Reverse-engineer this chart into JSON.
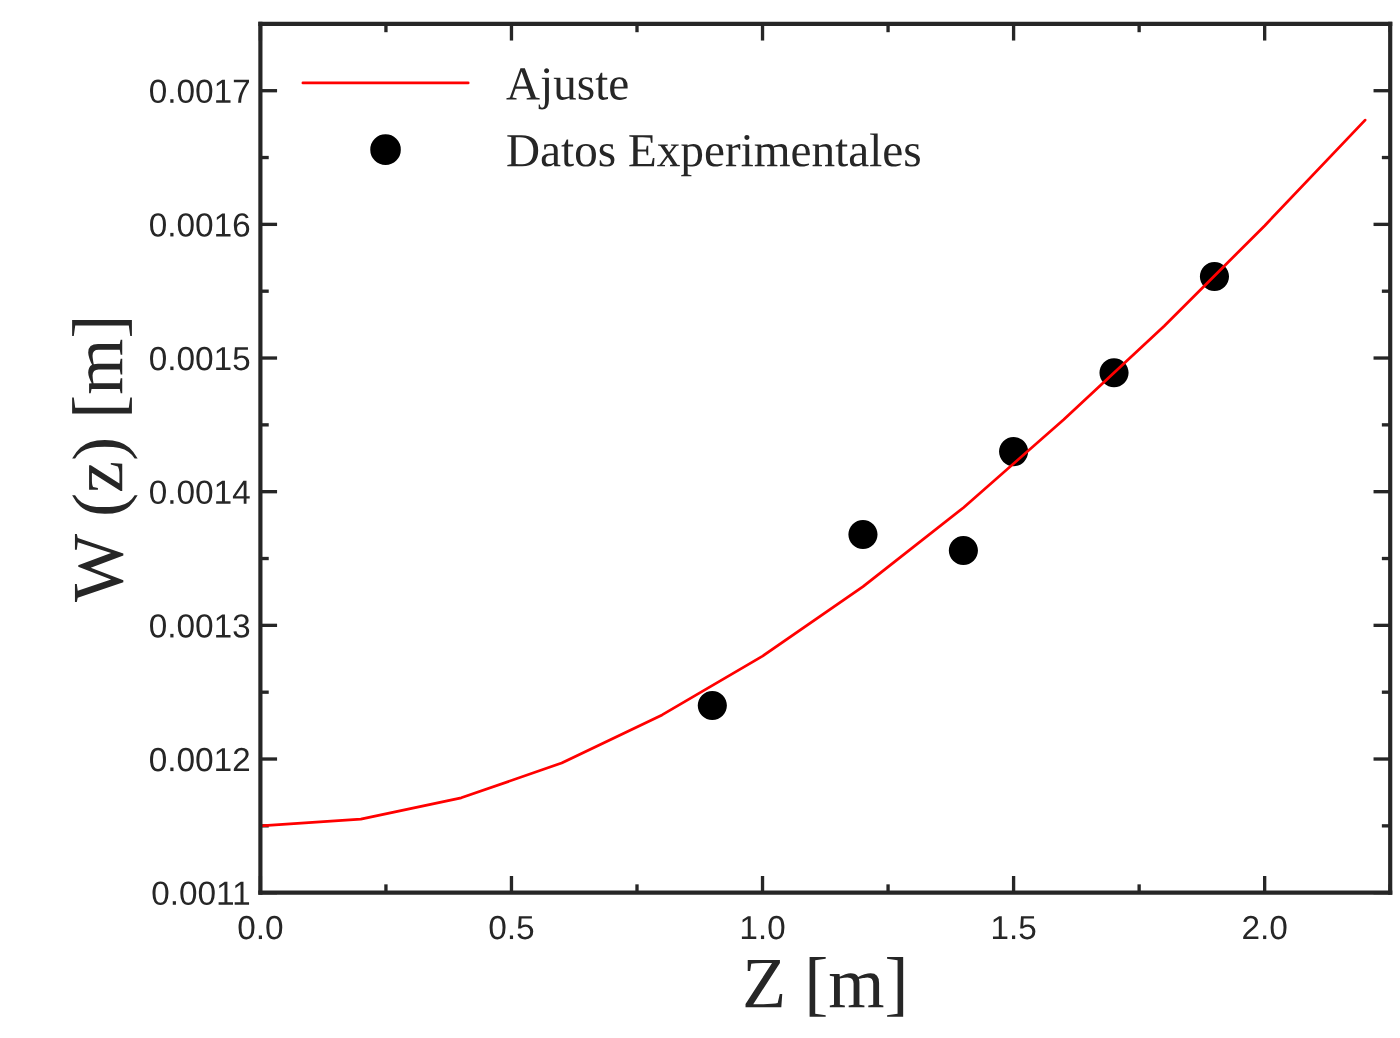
{
  "chart_data": {
    "type": "scatter",
    "xlabel": "Z [m]",
    "ylabel": "W (z) [m]",
    "xlim": [
      0,
      2.25
    ],
    "ylim": [
      0.0011,
      0.00175
    ],
    "xticks": [
      {
        "value": 0,
        "label": "0.0"
      },
      {
        "value": 0.5,
        "label": "0.5"
      },
      {
        "value": 1,
        "label": "1.0"
      },
      {
        "value": 1.5,
        "label": "1.5"
      },
      {
        "value": 2,
        "label": "2.0"
      }
    ],
    "yticks": [
      0.0011,
      0.0012,
      0.0013,
      0.0014,
      0.0015,
      0.0016,
      0.0017
    ],
    "grid": false,
    "legend": "top left",
    "series": [
      {
        "name": "Ajuste",
        "type": "line",
        "color": "#ff0000",
        "marker": "none",
        "line_style": "solid",
        "x": [
          0,
          0.2,
          0.4,
          0.6,
          0.8,
          1.0,
          1.2,
          1.4,
          1.6,
          1.8,
          2.0,
          2.2
        ],
        "values": [
          0.00115,
          0.001155,
          0.001171,
          0.001197,
          0.001233,
          0.001277,
          0.001329,
          0.001388,
          0.001454,
          0.001524,
          0.001599,
          0.001678
        ]
      },
      {
        "name": "Datos Experimentales",
        "color": "#000000",
        "marker": "circle",
        "x": [
          0.9,
          1.2,
          1.4,
          1.5,
          1.7,
          1.9
        ],
        "values": [
          0.00124,
          0.001368,
          0.001356,
          0.00143,
          0.001489,
          0.001561
        ]
      }
    ]
  }
}
